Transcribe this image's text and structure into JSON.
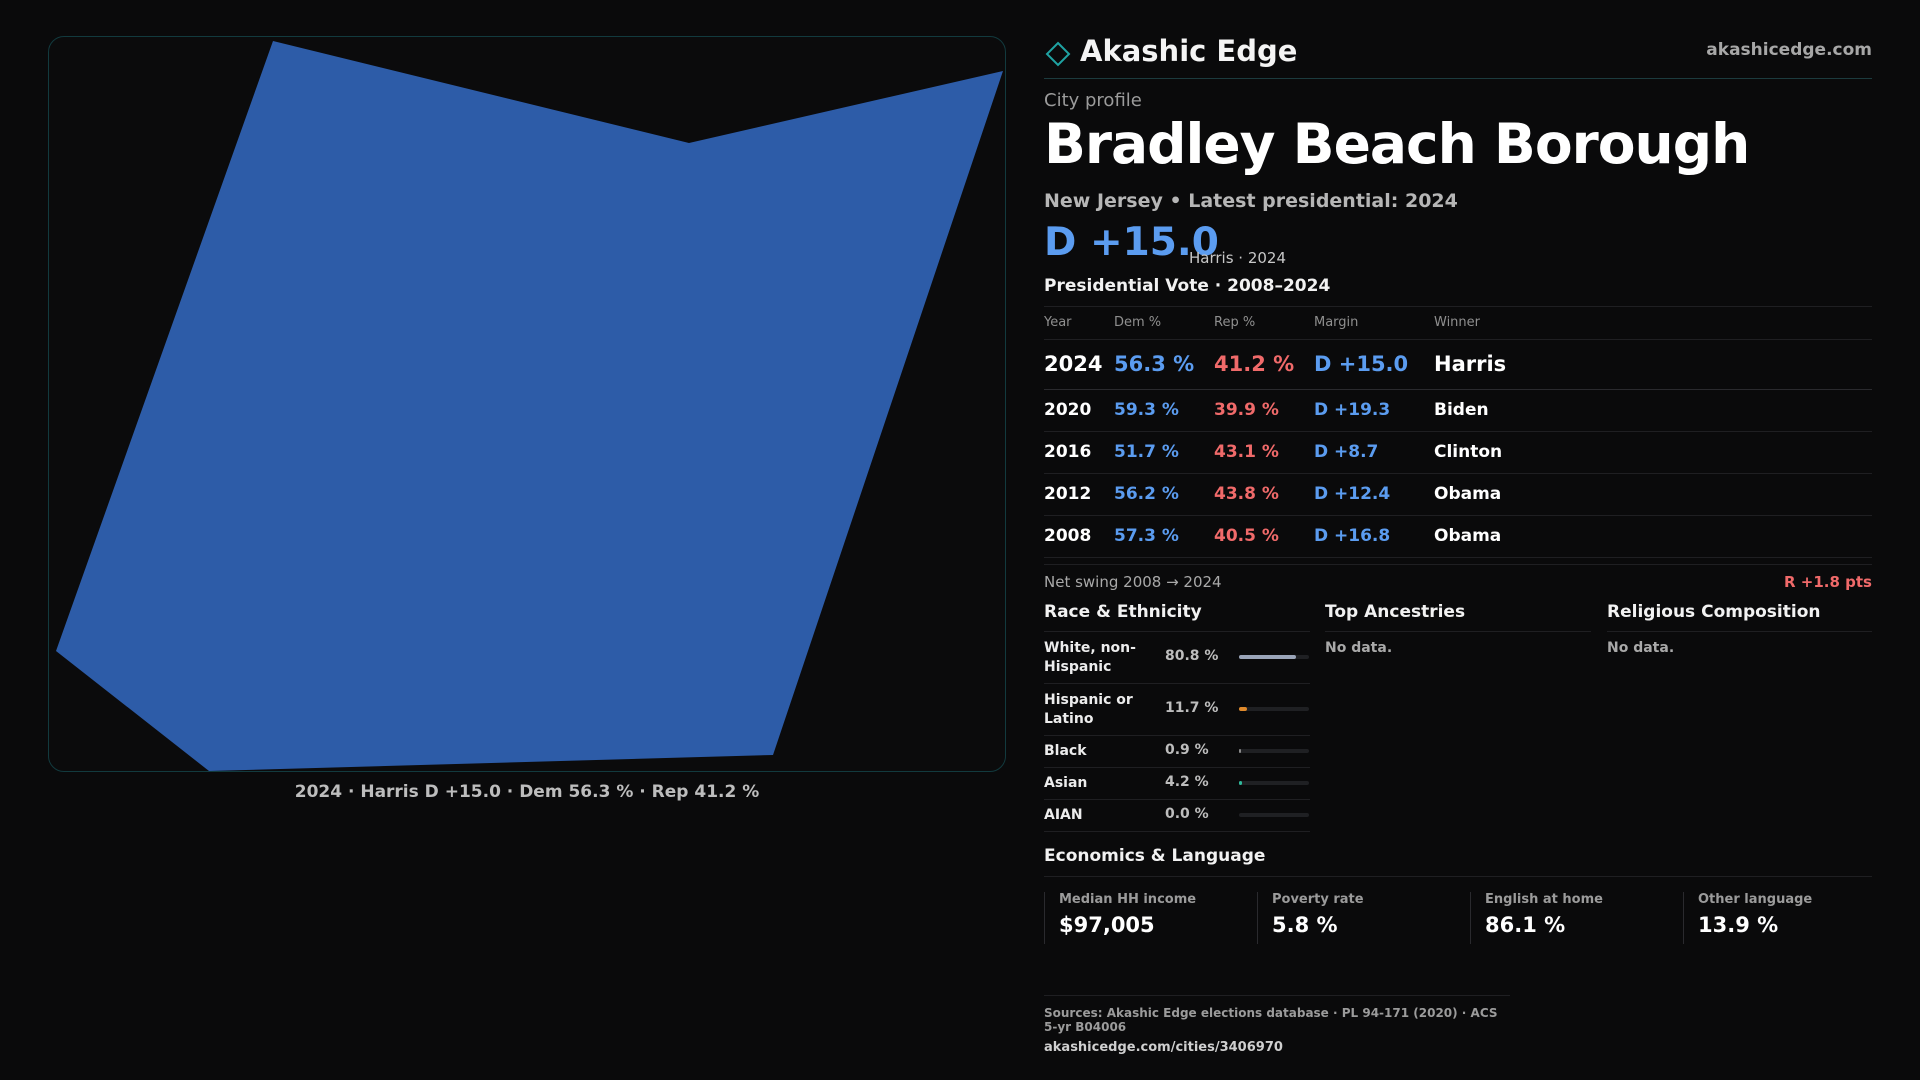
{
  "brand": {
    "name": "Akashic Edge",
    "url": "akashicedge.com"
  },
  "map": {
    "fill_color": "#2d5ca8",
    "caption": "2024 · Harris D +15.0 · Dem 56.3 % · Rep 41.2 %"
  },
  "profile": {
    "kicker": "City profile",
    "title": "Bradley Beach Borough",
    "subline": "New Jersey • Latest presidential: 2024",
    "headline_margin": "D +15.0",
    "headline_note": "Harris · 2024"
  },
  "vote_table": {
    "title": "Presidential Vote · 2008–2024",
    "headers": {
      "year": "Year",
      "dem": "Dem %",
      "rep": "Rep %",
      "margin": "Margin",
      "winner": "Winner"
    },
    "rows": [
      {
        "year": "2024",
        "dem": "56.3 %",
        "rep": "41.2 %",
        "margin": "D +15.0",
        "winner": "Harris"
      },
      {
        "year": "2020",
        "dem": "59.3 %",
        "rep": "39.9 %",
        "margin": "D +19.3",
        "winner": "Biden"
      },
      {
        "year": "2016",
        "dem": "51.7 %",
        "rep": "43.1 %",
        "margin": "D +8.7",
        "winner": "Clinton"
      },
      {
        "year": "2012",
        "dem": "56.2 %",
        "rep": "43.8 %",
        "margin": "D +12.4",
        "winner": "Obama"
      },
      {
        "year": "2008",
        "dem": "57.3 %",
        "rep": "40.5 %",
        "margin": "D +16.8",
        "winner": "Obama"
      }
    ],
    "swing_label": "Net swing 2008 → 2024",
    "swing_value": "R +1.8 pts"
  },
  "race": {
    "title": "Race & Ethnicity",
    "rows": [
      {
        "label": "White, non-Hispanic",
        "pct": "80.8 %",
        "share": 0.808,
        "color": "#9aa4b8"
      },
      {
        "label": "Hispanic or Latino",
        "pct": "11.7 %",
        "share": 0.117,
        "color": "#e08a2c"
      },
      {
        "label": "Black",
        "pct": "0.9 %",
        "share": 0.009,
        "color": "#8a8a8a"
      },
      {
        "label": "Asian",
        "pct": "4.2 %",
        "share": 0.042,
        "color": "#2fb89a"
      },
      {
        "label": "AIAN",
        "pct": "0.0 %",
        "share": 0.0,
        "color": "#8a8a8a"
      }
    ]
  },
  "ancestries": {
    "title": "Top Ancestries",
    "empty": "No data."
  },
  "religion": {
    "title": "Religious Composition",
    "empty": "No data."
  },
  "economics": {
    "title": "Economics & Language",
    "items": [
      {
        "label": "Median HH income",
        "value": "$97,005"
      },
      {
        "label": "Poverty rate",
        "value": "5.8 %"
      },
      {
        "label": "English at home",
        "value": "86.1 %"
      },
      {
        "label": "Other language",
        "value": "13.9 %"
      }
    ]
  },
  "sources": {
    "text": "Sources: Akashic Edge elections database · PL 94-171 (2020) · ACS 5-yr B04006",
    "link": "akashicedge.com/cities/3406970"
  }
}
